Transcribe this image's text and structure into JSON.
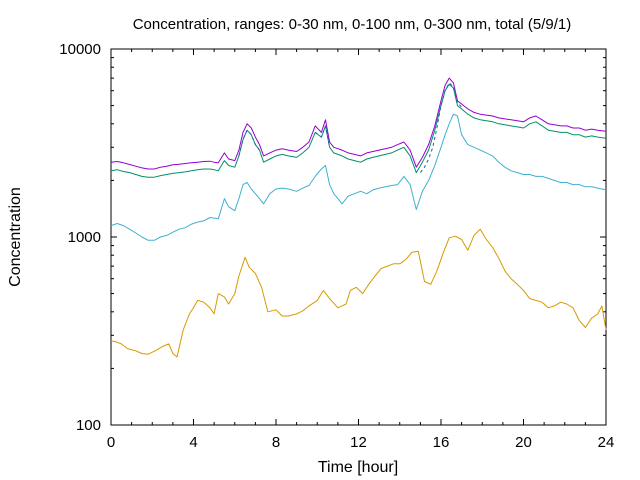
{
  "chart_data": {
    "type": "line",
    "title": "Concentration, ranges: 0-30 nm, 0-100 nm, 0-300 nm, total (5/9/1)",
    "xlabel": "Time [hour]",
    "ylabel": "Concentration",
    "xlim": [
      0,
      24
    ],
    "ylim": [
      100,
      10000
    ],
    "yscale": "log",
    "grid": false,
    "legend": "none",
    "x_ticks": [
      "0",
      "4",
      "8",
      "12",
      "16",
      "20",
      "24"
    ],
    "y_ticks": [
      "100",
      "1000",
      "10000"
    ],
    "series": [
      {
        "color": "#d79a00",
        "x": [
          0,
          0.2,
          0.5,
          0.8,
          1.2,
          1.5,
          1.8,
          2.2,
          2.5,
          2.8,
          3.0,
          3.2,
          3.5,
          3.8,
          4.0,
          4.2,
          4.5,
          4.8,
          5.0,
          5.2,
          5.5,
          5.7,
          6.0,
          6.2,
          6.5,
          6.7,
          7.0,
          7.3,
          7.6,
          8.0,
          8.3,
          8.6,
          9.0,
          9.3,
          9.6,
          10.0,
          10.3,
          10.6,
          11.0,
          11.2,
          11.4,
          11.6,
          11.9,
          12.2,
          12.5,
          12.8,
          13.1,
          13.4,
          13.7,
          14.0,
          14.3,
          14.6,
          14.9,
          15.2,
          15.5,
          15.8,
          16.1,
          16.4,
          16.7,
          17.0,
          17.3,
          17.6,
          17.9,
          18.2,
          18.5,
          18.8,
          19.1,
          19.4,
          19.7,
          20.0,
          20.3,
          20.6,
          20.9,
          21.2,
          21.5,
          21.8,
          22.1,
          22.4,
          22.7,
          23.0,
          23.3,
          23.6,
          23.8,
          24.0
        ],
        "values": [
          280,
          278,
          270,
          255,
          248,
          240,
          238,
          250,
          262,
          270,
          240,
          230,
          320,
          390,
          420,
          460,
          450,
          420,
          390,
          500,
          480,
          440,
          500,
          620,
          780,
          690,
          640,
          540,
          400,
          410,
          380,
          380,
          390,
          405,
          430,
          460,
          520,
          470,
          420,
          430,
          440,
          520,
          540,
          500,
          560,
          620,
          680,
          700,
          720,
          720,
          760,
          830,
          840,
          580,
          560,
          660,
          820,
          990,
          1010,
          970,
          850,
          1020,
          1100,
          970,
          880,
          770,
          660,
          600,
          560,
          520,
          470,
          460,
          450,
          420,
          430,
          450,
          440,
          420,
          360,
          330,
          370,
          390,
          430,
          320
        ]
      },
      {
        "color": "#40b0d0",
        "x": [
          0,
          0.3,
          0.6,
          0.9,
          1.2,
          1.5,
          1.8,
          2.1,
          2.4,
          2.7,
          3.0,
          3.3,
          3.6,
          3.9,
          4.2,
          4.5,
          4.8,
          5.0,
          5.2,
          5.5,
          5.7,
          6.0,
          6.2,
          6.4,
          6.6,
          6.8,
          7.0,
          7.2,
          7.4,
          7.7,
          8.0,
          8.3,
          8.6,
          9.0,
          9.3,
          9.6,
          9.9,
          10.2,
          10.4,
          10.6,
          10.8,
          11.0,
          11.2,
          11.5,
          11.8,
          12.1,
          12.4,
          12.7,
          13.0,
          13.3,
          13.6,
          13.9,
          14.2,
          14.5,
          14.8,
          15.1,
          15.4,
          15.7,
          16.0,
          16.2,
          16.4,
          16.6,
          16.8,
          17.0,
          17.3,
          17.6,
          17.9,
          18.2,
          18.5,
          18.8,
          19.1,
          19.4,
          19.7,
          20.0,
          20.3,
          20.6,
          20.9,
          21.2,
          21.5,
          21.8,
          22.1,
          22.4,
          22.7,
          23.0,
          23.3,
          23.6,
          24.0
        ],
        "values": [
          1150,
          1180,
          1150,
          1100,
          1050,
          1000,
          960,
          960,
          1000,
          1020,
          1060,
          1100,
          1120,
          1170,
          1200,
          1220,
          1270,
          1260,
          1250,
          1600,
          1450,
          1380,
          1600,
          1900,
          1950,
          1800,
          1700,
          1600,
          1500,
          1700,
          1800,
          1820,
          1800,
          1750,
          1820,
          1880,
          2100,
          2300,
          2400,
          1900,
          1700,
          1600,
          1500,
          1650,
          1700,
          1750,
          1700,
          1780,
          1820,
          1850,
          1880,
          1900,
          2100,
          1900,
          1400,
          1750,
          2000,
          2400,
          3000,
          3500,
          4000,
          4500,
          4400,
          3500,
          3100,
          3000,
          2900,
          2800,
          2700,
          2500,
          2350,
          2250,
          2200,
          2150,
          2150,
          2100,
          2100,
          2050,
          2000,
          1950,
          1950,
          1900,
          1900,
          1850,
          1850,
          1820,
          1780
        ]
      },
      {
        "color": "#00906a",
        "x": [
          0,
          0.3,
          0.6,
          0.9,
          1.2,
          1.5,
          1.8,
          2.1,
          2.4,
          2.7,
          3.0,
          3.3,
          3.6,
          3.9,
          4.2,
          4.5,
          4.8,
          5.0,
          5.2,
          5.5,
          5.7,
          6.0,
          6.2,
          6.4,
          6.6,
          6.8,
          7.0,
          7.2,
          7.4,
          7.7,
          8.0,
          8.3,
          8.6,
          9.0,
          9.3,
          9.6,
          9.9,
          10.2,
          10.4,
          10.6,
          10.8,
          11.0,
          11.2,
          11.5,
          11.8,
          12.1,
          12.4,
          12.7,
          13.0,
          13.3,
          13.6,
          13.9,
          14.2,
          14.5,
          14.8,
          15.1,
          15.4,
          15.7,
          16.0,
          16.2,
          16.4,
          16.6,
          16.8,
          17.0,
          17.3,
          17.6,
          17.9,
          18.2,
          18.5,
          18.8,
          19.1,
          19.4,
          19.7,
          20.0,
          20.3,
          20.6,
          20.9,
          21.2,
          21.5,
          21.8,
          22.1,
          22.4,
          22.7,
          23.0,
          23.3,
          23.6,
          24.0
        ],
        "values": [
          2250,
          2280,
          2230,
          2200,
          2150,
          2100,
          2080,
          2080,
          2120,
          2150,
          2180,
          2200,
          2220,
          2250,
          2280,
          2300,
          2300,
          2280,
          2250,
          2550,
          2400,
          2350,
          2700,
          3300,
          3700,
          3500,
          3100,
          2900,
          2500,
          2600,
          2700,
          2750,
          2700,
          2650,
          2800,
          3000,
          3600,
          3400,
          3900,
          3000,
          2800,
          2750,
          2700,
          2600,
          2550,
          2500,
          2600,
          2650,
          2700,
          2750,
          2800,
          2900,
          3000,
          2700,
          2200,
          2500,
          2900,
          3700,
          5000,
          6000,
          6500,
          6200,
          5000,
          4800,
          4500,
          4300,
          4200,
          4150,
          4100,
          4000,
          3950,
          3900,
          3850,
          3800,
          4000,
          4100,
          3900,
          3700,
          3650,
          3600,
          3600,
          3500,
          3500,
          3400,
          3450,
          3400,
          3350
        ]
      },
      {
        "color": "#9400d3",
        "x": [
          0,
          0.3,
          0.6,
          0.9,
          1.2,
          1.5,
          1.8,
          2.1,
          2.4,
          2.7,
          3.0,
          3.3,
          3.6,
          3.9,
          4.2,
          4.5,
          4.8,
          5.0,
          5.2,
          5.5,
          5.7,
          6.0,
          6.2,
          6.4,
          6.6,
          6.8,
          7.0,
          7.2,
          7.4,
          7.7,
          8.0,
          8.3,
          8.6,
          9.0,
          9.3,
          9.6,
          9.9,
          10.2,
          10.4,
          10.6,
          10.8,
          11.0,
          11.2,
          11.5,
          11.8,
          12.1,
          12.4,
          12.7,
          13.0,
          13.3,
          13.6,
          13.9,
          14.2,
          14.5,
          14.8,
          15.1,
          15.4,
          15.7,
          16.0,
          16.2,
          16.4,
          16.6,
          16.8,
          17.0,
          17.3,
          17.6,
          17.9,
          18.2,
          18.5,
          18.8,
          19.1,
          19.4,
          19.7,
          20.0,
          20.3,
          20.6,
          20.9,
          21.2,
          21.5,
          21.8,
          22.1,
          22.4,
          22.7,
          23.0,
          23.3,
          23.6,
          24.0
        ],
        "values": [
          2500,
          2520,
          2480,
          2430,
          2380,
          2330,
          2300,
          2300,
          2350,
          2380,
          2420,
          2440,
          2460,
          2480,
          2500,
          2520,
          2530,
          2500,
          2480,
          2800,
          2600,
          2550,
          2900,
          3600,
          4000,
          3800,
          3400,
          3100,
          2700,
          2800,
          2900,
          2950,
          2900,
          2850,
          3000,
          3200,
          3900,
          3600,
          4200,
          3200,
          3000,
          2950,
          2900,
          2800,
          2750,
          2700,
          2800,
          2850,
          2900,
          2950,
          3000,
          3100,
          3200,
          2900,
          2350,
          2650,
          3100,
          3900,
          5300,
          6400,
          7000,
          6600,
          5300,
          5100,
          4800,
          4600,
          4500,
          4450,
          4400,
          4300,
          4250,
          4200,
          4150,
          4100,
          4300,
          4400,
          4200,
          4000,
          3950,
          3900,
          3900,
          3800,
          3800,
          3700,
          3750,
          3700,
          3650
        ]
      },
      {
        "color": "#2060a0",
        "dash": "3,3",
        "x": [
          15.0,
          15.2,
          15.4,
          15.6,
          15.8,
          16.0,
          16.2,
          16.4,
          16.6,
          16.8,
          17.0
        ],
        "values": [
          2200,
          2350,
          2600,
          3000,
          3800,
          5000,
          6000,
          6600,
          6300,
          5200,
          4900
        ]
      },
      {
        "color": "#2060a0",
        "dash": "3,3",
        "x": [
          6.2,
          6.4,
          6.6,
          6.8,
          7.0,
          7.2
        ],
        "values": [
          2700,
          3300,
          3700,
          3500,
          3100,
          2900
        ]
      },
      {
        "color": "#2060a0",
        "dash": "3,3",
        "x": [
          9.9,
          10.2,
          10.4,
          10.6
        ],
        "values": [
          3600,
          3400,
          3900,
          3000
        ]
      }
    ]
  }
}
